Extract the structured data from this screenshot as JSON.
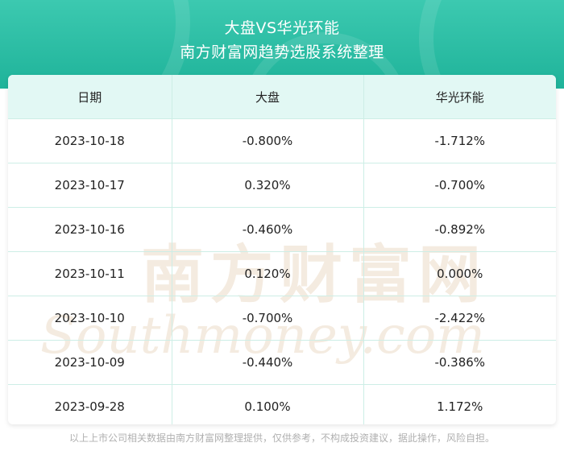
{
  "header": {
    "title_line1": "大盘VS华光环能",
    "title_line2": "南方财富网趋势选股系统整理"
  },
  "table": {
    "columns": [
      "日期",
      "大盘",
      "华光环能"
    ],
    "rows": [
      [
        "2023-10-18",
        "-0.800%",
        "-1.712%"
      ],
      [
        "2023-10-17",
        "0.320%",
        "-0.700%"
      ],
      [
        "2023-10-16",
        "-0.460%",
        "-0.892%"
      ],
      [
        "2023-10-11",
        "0.120%",
        "0.000%"
      ],
      [
        "2023-10-10",
        "-0.700%",
        "-2.422%"
      ],
      [
        "2023-10-09",
        "-0.440%",
        "-0.386%"
      ],
      [
        "2023-09-28",
        "0.100%",
        "1.172%"
      ]
    ]
  },
  "watermark": {
    "cn": "南方财富网",
    "en": "Southmoney.com"
  },
  "footer": {
    "disclaimer": "以上上市公司相关数据由南方财富网整理提供，仅供参考，不构成投资建议，据此操作，风险自担。"
  },
  "colors": {
    "header_bg": "#1fb39a",
    "table_header_bg": "#e2f8f4",
    "grid_line": "#cdeee6",
    "watermark": "#f2e6d6"
  }
}
